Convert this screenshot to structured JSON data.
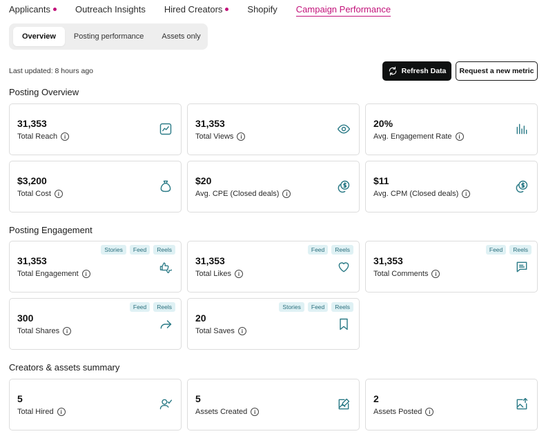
{
  "topnav": [
    {
      "label": "Applicants",
      "dot": true
    },
    {
      "label": "Outreach Insights",
      "dot": false
    },
    {
      "label": "Hired Creators",
      "dot": true
    },
    {
      "label": "Shopify",
      "dot": false
    },
    {
      "label": "Campaign Performance",
      "dot": false,
      "active": true
    }
  ],
  "subtabs": [
    "Overview",
    "Posting performance",
    "Assets only"
  ],
  "last_updated": "Last updated: 8 hours ago",
  "buttons": {
    "refresh": "Refresh Data",
    "request": "Request a new metric"
  },
  "sections": {
    "overview": "Posting Overview",
    "engagement": "Posting Engagement",
    "summary": "Creators & assets summary"
  },
  "overview_cards": [
    {
      "value": "31,353",
      "label": "Total Reach",
      "icon": "trend-chart-icon"
    },
    {
      "value": "31,353",
      "label": "Total Views",
      "icon": "eye-icon"
    },
    {
      "value": "20%",
      "label": "Avg. Engagement Rate",
      "icon": "bar-chart-icon"
    },
    {
      "value": "$3,200",
      "label": "Total Cost",
      "icon": "money-bag-icon"
    },
    {
      "value": "$20",
      "label": "Avg. CPE (Closed deals)",
      "icon": "coins-icon"
    },
    {
      "value": "$11",
      "label": "Avg. CPM (Closed deals)",
      "icon": "coins-icon"
    }
  ],
  "engagement_cards": [
    {
      "value": "31,353",
      "label": "Total Engagement",
      "icon": "thumbs-icon",
      "tags": [
        "Stories",
        "Feed",
        "Reels"
      ]
    },
    {
      "value": "31,353",
      "label": "Total Likes",
      "icon": "heart-icon",
      "tags": [
        "Feed",
        "Reels"
      ]
    },
    {
      "value": "31,353",
      "label": "Total Comments",
      "icon": "comment-icon",
      "tags": [
        "Feed",
        "Reels"
      ]
    },
    {
      "value": "300",
      "label": "Total Shares",
      "icon": "share-icon",
      "tags": [
        "Feed",
        "Reels"
      ]
    },
    {
      "value": "20",
      "label": "Total Saves",
      "icon": "bookmark-icon",
      "tags": [
        "Stories",
        "Feed",
        "Reels"
      ]
    }
  ],
  "summary_cards": [
    {
      "value": "5",
      "label": "Total Hired",
      "icon": "user-check-icon"
    },
    {
      "value": "5",
      "label": "Assets Created",
      "icon": "image-edit-icon"
    },
    {
      "value": "2",
      "label": "Assets Posted",
      "icon": "image-upload-icon"
    }
  ],
  "info_glyph": "i",
  "colors": {
    "accent": "#c2127a",
    "icon": "#2a7a86",
    "tag_bg": "#dff1f4",
    "tag_text": "#2a6f7d"
  }
}
